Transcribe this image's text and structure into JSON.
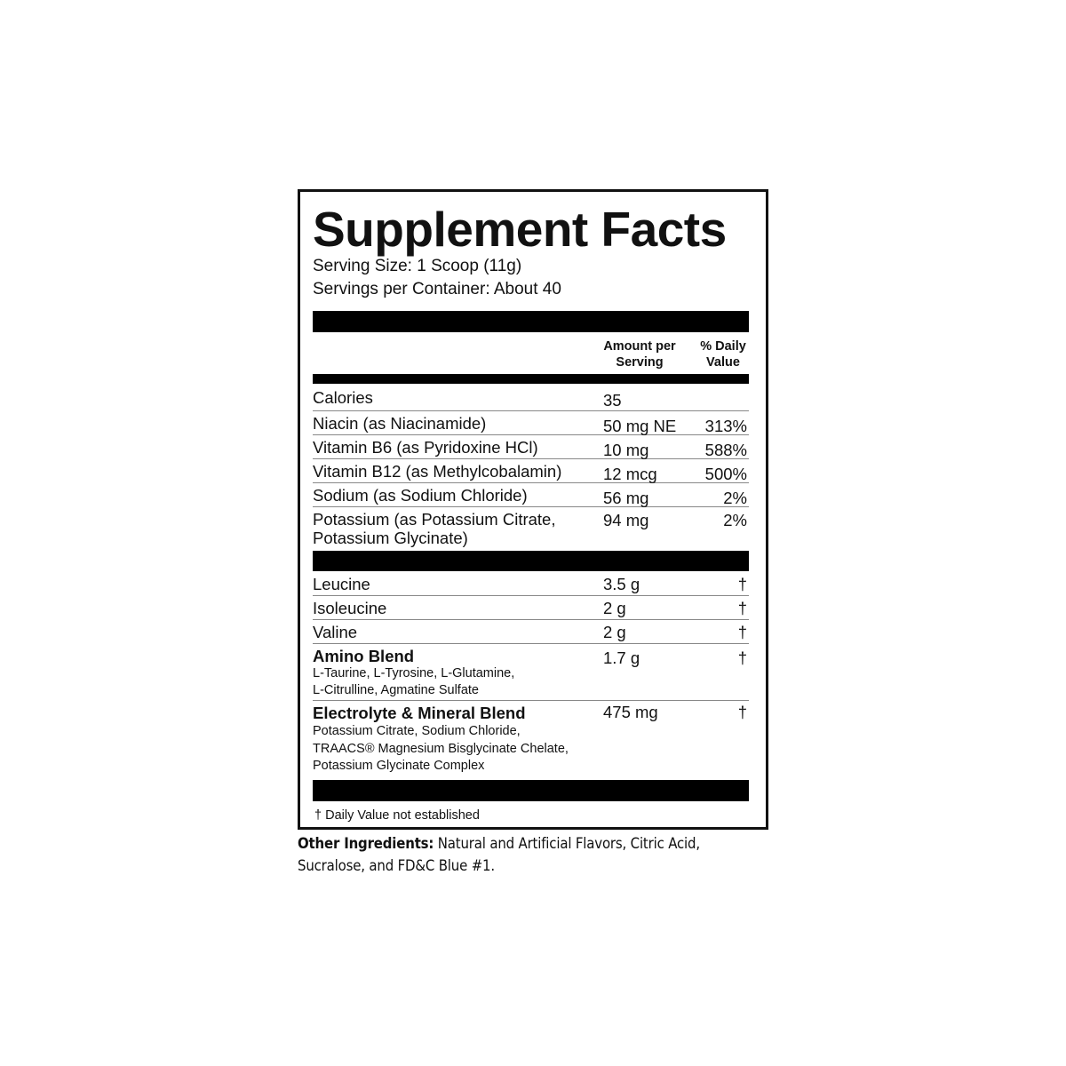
{
  "label": {
    "title": "Supplement Facts",
    "serving_size": "Serving Size: 1 Scoop (11g)",
    "servings_per_container": "Servings per Container: About 40",
    "column_headers": {
      "amount_line1": "Amount per",
      "amount_line2": "Serving",
      "dv_line1": "% Daily",
      "dv_line2": "Value"
    },
    "nutrients": [
      {
        "name": "Calories",
        "amount": "35",
        "dv": ""
      },
      {
        "name": "Niacin (as Niacinamide)",
        "amount": "50 mg NE",
        "dv": "313%"
      },
      {
        "name": "Vitamin B6 (as Pyridoxine HCl)",
        "amount": "10 mg",
        "dv": "588%"
      },
      {
        "name": "Vitamin B12 (as Methylcobalamin)",
        "amount": "12 mcg",
        "dv": "500%"
      },
      {
        "name": "Sodium (as Sodium Chloride)",
        "amount": "56 mg",
        "dv": "2%"
      },
      {
        "name": "Potassium (as Potassium Citrate,",
        "name_line2": "Potassium Glycinate)",
        "amount": "94 mg",
        "dv": "2%"
      }
    ],
    "ingredients": [
      {
        "name": "Leucine",
        "amount": "3.5 g",
        "dv": "†"
      },
      {
        "name": "Isoleucine",
        "amount": "2 g",
        "dv": "†"
      },
      {
        "name": "Valine",
        "amount": "2 g",
        "dv": "†"
      },
      {
        "name": "Amino Blend",
        "sub1": "L-Taurine, L-Tyrosine, L-Glutamine,",
        "sub2": "L-Citrulline, Agmatine Sulfate",
        "amount": "1.7 g",
        "dv": "†"
      },
      {
        "name": "Electrolyte & Mineral Blend",
        "sub1": "Potassium Citrate, Sodium Chloride,",
        "sub2": "TRAACS® Magnesium Bisglycinate Chelate,",
        "sub3": "Potassium Glycinate Complex",
        "amount": "475 mg",
        "dv": "†"
      }
    ],
    "footnote": "† Daily Value not established"
  },
  "other_ingredients": {
    "heading": "Other Ingredients:",
    "text": " Natural and Artificial Flavors, Citric Acid, Sucralose, and FD&C Blue #1."
  }
}
